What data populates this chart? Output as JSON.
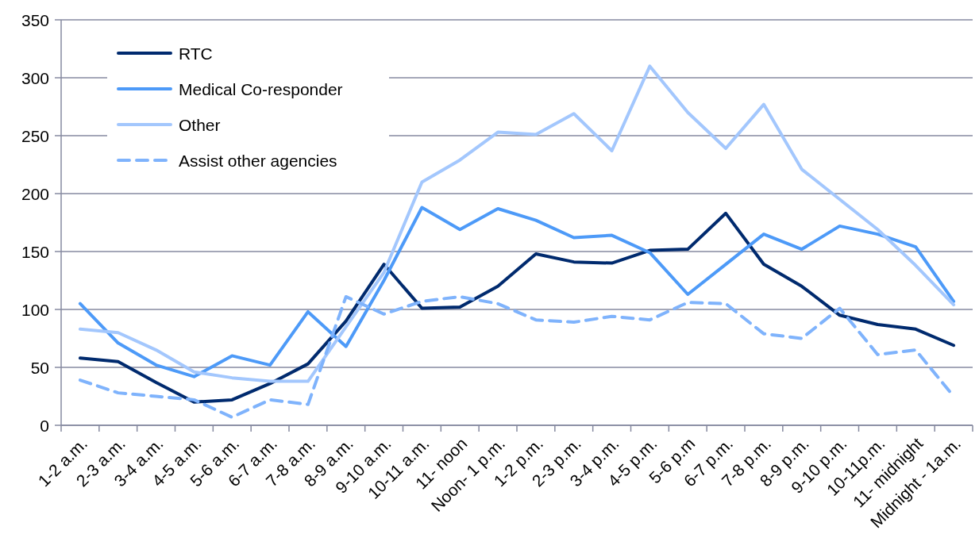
{
  "chart_data": {
    "type": "line",
    "categories": [
      "1-2 a.m.",
      "2-3 a.m.",
      "3-4 a.m.",
      "4-5 a.m.",
      "5-6 a.m.",
      "6-7 a.m.",
      "7-8 a.m.",
      "8-9 a.m.",
      "9-10 a.m.",
      "10-11 a.m.",
      "11- noon",
      "Noon- 1 p.m.",
      "1-2 p.m.",
      "2-3 p.m.",
      "3-4 p.m.",
      "4-5 p.m.",
      "5-6 p.m",
      "6-7 p.m.",
      "7-8 p.m.",
      "8-9 p.m.",
      "9-10 p.m.",
      "10-11p.m.",
      "11- midnight",
      "Midnight - 1a.m."
    ],
    "series": [
      {
        "name": "RTC",
        "color": "#002a6e",
        "values": [
          58,
          55,
          37,
          20,
          22,
          36,
          53,
          90,
          139,
          101,
          102,
          120,
          148,
          141,
          140,
          151,
          152,
          183,
          139,
          120,
          95,
          87,
          83,
          69
        ]
      },
      {
        "name": "Medical Co-responder",
        "color": "#4d9af8",
        "values": [
          105,
          71,
          52,
          42,
          60,
          52,
          98,
          68,
          125,
          188,
          169,
          187,
          177,
          162,
          164,
          149,
          113,
          139,
          165,
          152,
          172,
          165,
          154,
          107
        ]
      },
      {
        "name": "Other",
        "color": "#a3c7fd",
        "values": [
          83,
          80,
          65,
          46,
          41,
          38,
          38,
          85,
          132,
          210,
          229,
          253,
          251,
          269,
          237,
          310,
          270,
          239,
          277,
          221,
          195,
          169,
          138,
          104
        ]
      },
      {
        "name": "Assist other agencies",
        "color": "#7fb3fc",
        "line_style": "dashed",
        "values": [
          39,
          28,
          25,
          22,
          7,
          22,
          18,
          111,
          96,
          107,
          111,
          105,
          91,
          89,
          94,
          91,
          106,
          105,
          79,
          75,
          101,
          61,
          65,
          25
        ]
      }
    ],
    "ylim": [
      0,
      350
    ],
    "yticks": [
      0,
      50,
      100,
      150,
      200,
      250,
      300,
      350
    ],
    "grid": "y",
    "legend": "top left"
  }
}
